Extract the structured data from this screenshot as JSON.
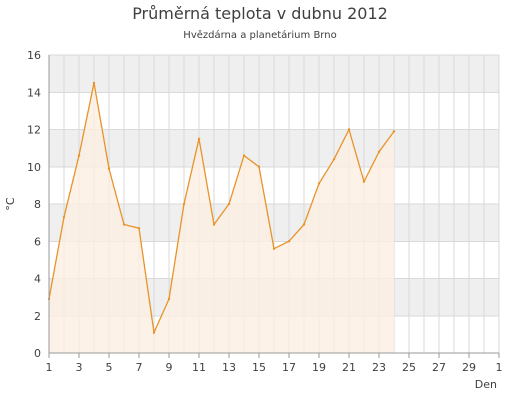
{
  "chart_data": {
    "type": "area",
    "title": "Průměrná teplota v dubnu 2012",
    "subtitle": "Hvězdárna a planetárium Brno",
    "xlabel": "Den",
    "ylabel": "°C",
    "xlim": [
      1,
      31
    ],
    "ylim": [
      0,
      16
    ],
    "x_ticks": [
      "1",
      "3",
      "5",
      "7",
      "9",
      "11",
      "13",
      "15",
      "17",
      "19",
      "21",
      "23",
      "25",
      "27",
      "29",
      "1"
    ],
    "y_ticks": [
      "0",
      "2",
      "4",
      "6",
      "8",
      "10",
      "12",
      "14",
      "16"
    ],
    "grid": true,
    "legend": "none",
    "series": [
      {
        "x": [
          1,
          2,
          3,
          4,
          5,
          6,
          7,
          8,
          9,
          10,
          11,
          12,
          13,
          14,
          15,
          16,
          17,
          18,
          19,
          20,
          21,
          22,
          23,
          24
        ],
        "values": [
          2.9,
          7.3,
          10.6,
          14.5,
          9.9,
          6.9,
          6.7,
          1.1,
          2.9,
          8.0,
          11.5,
          6.9,
          8.0,
          10.6,
          10.0,
          5.6,
          6.0,
          6.9,
          9.1,
          10.4,
          12.0,
          9.2,
          10.8,
          11.9
        ]
      }
    ],
    "colors": {
      "line": "#e8932a",
      "area_fill": "#fcefe2",
      "band": "#efefef",
      "grid": "#dadada",
      "axis": "#9a9a9a",
      "text": "#3f3f3f"
    }
  }
}
